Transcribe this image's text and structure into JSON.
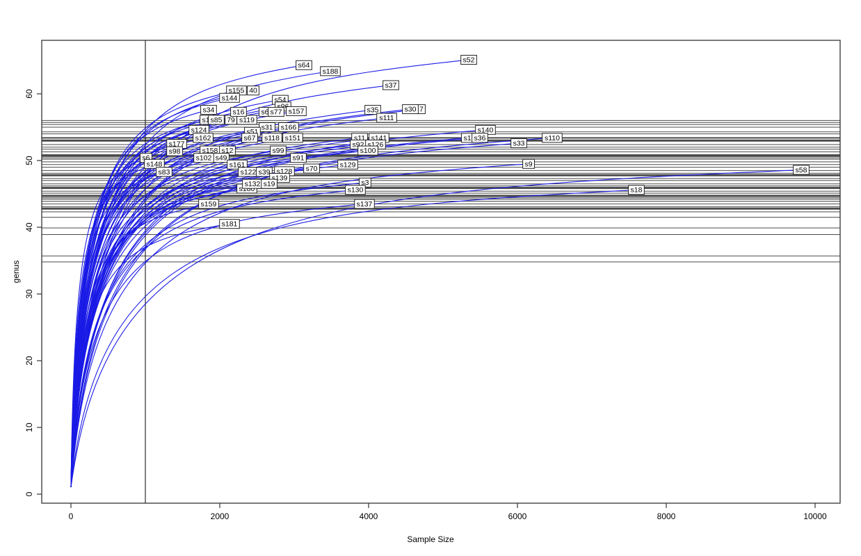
{
  "chart_data": {
    "type": "line",
    "title": "",
    "xlabel": "Sample Size",
    "ylabel": "genus",
    "x_ticks": [
      0,
      2000,
      4000,
      6000,
      8000,
      10000
    ],
    "y_ticks": [
      0,
      10,
      20,
      30,
      40,
      50,
      60
    ],
    "xlim": [
      -400,
      10340
    ],
    "ylim": [
      -1,
      68
    ],
    "grid": false,
    "legend": "none",
    "vline_x": 1000,
    "curve_color": "#1a1ae6",
    "hline_color": "#4a4a4a",
    "axis_color": "#333333",
    "label_box_fill": "#ffffff",
    "label_box_stroke": "#222222",
    "series_note": "rarefaction curves: each series rises from (1,1) to its endpoint (x=sample size, y=genus richness); label drawn at endpoint",
    "series": [
      {
        "label": "s52",
        "x": 5346,
        "y": 65.1
      },
      {
        "label": "s64",
        "x": 3131,
        "y": 64.3
      },
      {
        "label": "s188",
        "x": 3486,
        "y": 63.4
      },
      {
        "label": "s37",
        "x": 4299,
        "y": 61.3
      },
      {
        "label": "40",
        "x": 2449,
        "y": 60.5
      },
      {
        "label": "s155",
        "x": 2224,
        "y": 60.5
      },
      {
        "label": "s144",
        "x": 2131,
        "y": 59.4
      },
      {
        "label": "s54",
        "x": 2813,
        "y": 59.1
      },
      {
        "label": "s96",
        "x": 2850,
        "y": 58.1
      },
      {
        "label": "s34",
        "x": 1850,
        "y": 57.6
      },
      {
        "label": "s1",
        "x": 1813,
        "y": 56.1
      },
      {
        "label": "79",
        "x": 2150,
        "y": 56.1
      },
      {
        "label": "s85",
        "x": 1953,
        "y": 56.1
      },
      {
        "label": "s119",
        "x": 2364,
        "y": 56.1
      },
      {
        "label": "s16",
        "x": 2252,
        "y": 57.3
      },
      {
        "label": "s6",
        "x": 2607,
        "y": 57.3
      },
      {
        "label": "s77",
        "x": 2757,
        "y": 57.3
      },
      {
        "label": "s157",
        "x": 3028,
        "y": 57.4
      },
      {
        "label": "s35",
        "x": 4056,
        "y": 57.6
      },
      {
        "label": "7",
        "x": 4710,
        "y": 57.7
      },
      {
        "label": "s30",
        "x": 4561,
        "y": 57.7
      },
      {
        "label": "s111",
        "x": 4243,
        "y": 56.4
      },
      {
        "label": "s31",
        "x": 2636,
        "y": 55.0
      },
      {
        "label": "s166",
        "x": 2925,
        "y": 55.0
      },
      {
        "label": "s124",
        "x": 1720,
        "y": 54.6
      },
      {
        "label": "s51",
        "x": 2439,
        "y": 54.3
      },
      {
        "label": "s140",
        "x": 5570,
        "y": 54.6
      },
      {
        "label": "s162",
        "x": 1776,
        "y": 53.4
      },
      {
        "label": "s67",
        "x": 2402,
        "y": 53.4
      },
      {
        "label": "s118",
        "x": 2701,
        "y": 53.4
      },
      {
        "label": "s151",
        "x": 2981,
        "y": 53.4
      },
      {
        "label": "s11",
        "x": 3879,
        "y": 53.4
      },
      {
        "label": "s141",
        "x": 4140,
        "y": 53.4
      },
      {
        "label": "s1",
        "x": 5327,
        "y": 53.4
      },
      {
        "label": "s36",
        "x": 5495,
        "y": 53.4
      },
      {
        "label": "s110",
        "x": 6467,
        "y": 53.4
      },
      {
        "label": "s33",
        "x": 6019,
        "y": 52.6
      },
      {
        "label": "s177",
        "x": 1421,
        "y": 52.5
      },
      {
        "label": "s92",
        "x": 3860,
        "y": 52.4
      },
      {
        "label": "s126",
        "x": 4093,
        "y": 52.4
      },
      {
        "label": "s100",
        "x": 3991,
        "y": 51.5
      },
      {
        "label": "s98",
        "x": 1393,
        "y": 51.4
      },
      {
        "label": "s158",
        "x": 1869,
        "y": 51.5
      },
      {
        "label": "s12",
        "x": 2103,
        "y": 51.5
      },
      {
        "label": "s99",
        "x": 2785,
        "y": 51.5
      },
      {
        "label": "s6",
        "x": 1009,
        "y": 50.4
      },
      {
        "label": "s49",
        "x": 2019,
        "y": 50.4
      },
      {
        "label": "s102",
        "x": 1785,
        "y": 50.4
      },
      {
        "label": "s91",
        "x": 3056,
        "y": 50.4
      },
      {
        "label": "s148",
        "x": 1121,
        "y": 49.5
      },
      {
        "label": "s161",
        "x": 2234,
        "y": 49.4
      },
      {
        "label": "s129",
        "x": 3720,
        "y": 49.4
      },
      {
        "label": "s9",
        "x": 6150,
        "y": 49.5
      },
      {
        "label": "s83",
        "x": 1252,
        "y": 48.3
      },
      {
        "label": "s122",
        "x": 2383,
        "y": 48.3
      },
      {
        "label": "s39",
        "x": 2598,
        "y": 48.3
      },
      {
        "label": "s128",
        "x": 2869,
        "y": 48.4
      },
      {
        "label": "s70",
        "x": 3234,
        "y": 48.8
      },
      {
        "label": "s58",
        "x": 9813,
        "y": 48.6
      },
      {
        "label": "s139",
        "x": 2804,
        "y": 47.4
      },
      {
        "label": "s180",
        "x": 2364,
        "y": 45.8
      },
      {
        "label": "s132",
        "x": 2439,
        "y": 46.5
      },
      {
        "label": "s19",
        "x": 2664,
        "y": 46.5
      },
      {
        "label": "s3",
        "x": 3953,
        "y": 46.7
      },
      {
        "label": "s130",
        "x": 3822,
        "y": 45.6
      },
      {
        "label": "s18",
        "x": 7598,
        "y": 45.6
      },
      {
        "label": "s159",
        "x": 1850,
        "y": 43.5
      },
      {
        "label": "s137",
        "x": 3944,
        "y": 43.5
      },
      {
        "label": "s181",
        "x": 2131,
        "y": 40.5
      }
    ],
    "hlines": [
      {
        "y": 56.0
      },
      {
        "y": 55.7
      },
      {
        "y": 55.4
      },
      {
        "y": 55.0
      },
      {
        "y": 54.3
      },
      {
        "y": 54.0
      },
      {
        "y": 53.4,
        "w": 2
      },
      {
        "y": 53.0,
        "w": 3
      },
      {
        "y": 52.4
      },
      {
        "y": 52.0
      },
      {
        "y": 51.7
      },
      {
        "y": 51.3
      },
      {
        "y": 50.9
      },
      {
        "y": 50.7,
        "w": 3
      },
      {
        "y": 50.4
      },
      {
        "y": 50.2
      },
      {
        "y": 49.8
      },
      {
        "y": 49.4
      },
      {
        "y": 49.0
      },
      {
        "y": 48.5
      },
      {
        "y": 48.1
      },
      {
        "y": 47.8,
        "w": 3
      },
      {
        "y": 47.3
      },
      {
        "y": 47.0
      },
      {
        "y": 46.5
      },
      {
        "y": 46.2
      },
      {
        "y": 45.9,
        "w": 3
      },
      {
        "y": 45.4
      },
      {
        "y": 45.1
      },
      {
        "y": 44.7,
        "w": 3
      },
      {
        "y": 44.4
      },
      {
        "y": 44.2
      },
      {
        "y": 43.9
      },
      {
        "y": 43.5
      },
      {
        "y": 43.1
      },
      {
        "y": 42.8,
        "w": 3
      },
      {
        "y": 42.3
      },
      {
        "y": 41.5
      },
      {
        "y": 39.9
      },
      {
        "y": 38.9
      },
      {
        "y": 35.7
      },
      {
        "y": 34.8
      }
    ]
  }
}
